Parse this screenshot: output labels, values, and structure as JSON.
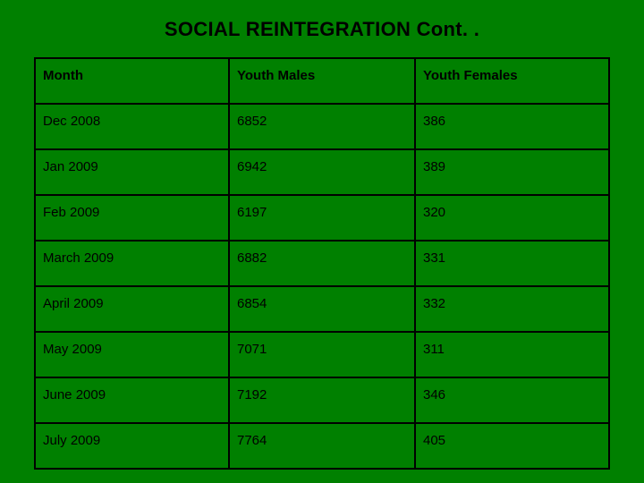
{
  "title": "SOCIAL REINTEGRATION Cont. .",
  "table": {
    "type": "table",
    "background_color": "#008000",
    "border_color": "#000000",
    "text_color": "#000000",
    "header_fontsize": 15,
    "cell_fontsize": 15,
    "columns": [
      "Month",
      "Youth Males",
      "Youth Females"
    ],
    "rows": [
      [
        "Dec 2008",
        "6852",
        "386"
      ],
      [
        "Jan 2009",
        "6942",
        "389"
      ],
      [
        "Feb 2009",
        "6197",
        "320"
      ],
      [
        "March 2009",
        "6882",
        "331"
      ],
      [
        "April 2009",
        "6854",
        "332"
      ],
      [
        "May 2009",
        "7071",
        "311"
      ],
      [
        "June 2009",
        "7192",
        "346"
      ],
      [
        "July 2009",
        "7764",
        "405"
      ]
    ]
  }
}
